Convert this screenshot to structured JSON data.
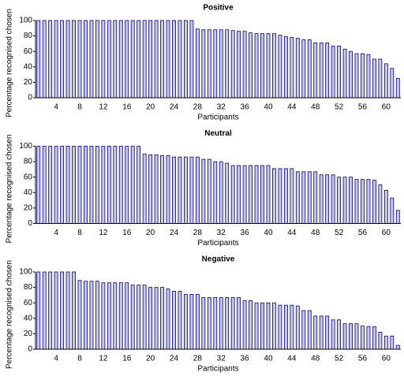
{
  "chart_data": [
    {
      "type": "bar",
      "title": "Positive",
      "xlabel": "Participants",
      "ylabel": "Percentage recognised chosen",
      "color": "#c8c8f0",
      "categories": [
        null,
        null,
        null,
        4,
        null,
        null,
        null,
        8,
        null,
        null,
        null,
        12,
        null,
        null,
        null,
        16,
        null,
        null,
        null,
        20,
        null,
        null,
        null,
        24,
        null,
        null,
        null,
        28,
        null,
        null,
        null,
        32,
        null,
        null,
        null,
        36,
        null,
        null,
        null,
        40,
        null,
        null,
        null,
        44,
        null,
        null,
        null,
        48,
        null,
        null,
        null,
        52,
        null,
        null,
        null,
        56,
        null,
        null,
        null,
        60,
        null,
        null
      ],
      "values": [
        100,
        100,
        100,
        100,
        100,
        100,
        100,
        100,
        100,
        100,
        100,
        100,
        100,
        100,
        100,
        100,
        100,
        100,
        100,
        100,
        100,
        100,
        100,
        100,
        100,
        100,
        100,
        89,
        88,
        88,
        88,
        88,
        88,
        87,
        86,
        86,
        84,
        83,
        83,
        83,
        83,
        81,
        79,
        78,
        77,
        75,
        75,
        71,
        71,
        71,
        67,
        67,
        63,
        60,
        57,
        57,
        56,
        50,
        50,
        44,
        38,
        25
      ],
      "ylim": [
        0,
        100
      ],
      "yticks": [
        0,
        20,
        40,
        60,
        80,
        100
      ]
    },
    {
      "type": "bar",
      "title": "Neutral",
      "xlabel": "Participants",
      "ylabel": "Percentage recognised chosen",
      "color": "#c8c8f0",
      "categories": [
        null,
        null,
        null,
        4,
        null,
        null,
        null,
        8,
        null,
        null,
        null,
        12,
        null,
        null,
        null,
        16,
        null,
        null,
        null,
        20,
        null,
        null,
        null,
        24,
        null,
        null,
        null,
        28,
        null,
        null,
        null,
        32,
        null,
        null,
        null,
        36,
        null,
        null,
        null,
        40,
        null,
        null,
        null,
        44,
        null,
        null,
        null,
        48,
        null,
        null,
        null,
        52,
        null,
        null,
        null,
        56,
        null,
        null,
        null,
        60,
        null,
        null
      ],
      "values": [
        100,
        100,
        100,
        100,
        100,
        100,
        100,
        100,
        100,
        100,
        100,
        100,
        100,
        100,
        100,
        100,
        100,
        100,
        90,
        89,
        89,
        88,
        88,
        86,
        86,
        86,
        86,
        86,
        83,
        83,
        80,
        80,
        78,
        75,
        75,
        75,
        75,
        75,
        75,
        75,
        71,
        71,
        71,
        71,
        67,
        67,
        67,
        67,
        63,
        63,
        63,
        60,
        60,
        60,
        57,
        57,
        57,
        56,
        50,
        43,
        33,
        17
      ],
      "ylim": [
        0,
        100
      ],
      "yticks": [
        0,
        20,
        40,
        60,
        80,
        100
      ]
    },
    {
      "type": "bar",
      "title": "Negative",
      "xlabel": "Participants",
      "ylabel": "Percentage recognised chosen",
      "color": "#c8c8f0",
      "categories": [
        null,
        null,
        null,
        4,
        null,
        null,
        null,
        8,
        null,
        null,
        null,
        12,
        null,
        null,
        null,
        16,
        null,
        null,
        null,
        20,
        null,
        null,
        null,
        24,
        null,
        null,
        null,
        28,
        null,
        null,
        null,
        32,
        null,
        null,
        null,
        36,
        null,
        null,
        null,
        40,
        null,
        null,
        null,
        44,
        null,
        null,
        null,
        48,
        null,
        null,
        null,
        52,
        null,
        null,
        null,
        56,
        null,
        null,
        null,
        60,
        null,
        null
      ],
      "values": [
        100,
        100,
        100,
        100,
        100,
        100,
        100,
        89,
        88,
        88,
        88,
        86,
        86,
        86,
        86,
        86,
        83,
        83,
        83,
        80,
        80,
        80,
        78,
        75,
        75,
        71,
        71,
        71,
        67,
        67,
        67,
        67,
        67,
        67,
        67,
        63,
        63,
        60,
        60,
        60,
        60,
        57,
        57,
        57,
        56,
        50,
        50,
        43,
        43,
        43,
        38,
        38,
        33,
        33,
        33,
        30,
        29,
        29,
        22,
        17,
        17,
        5
      ],
      "ylim": [
        0,
        100
      ],
      "yticks": [
        0,
        20,
        40,
        60,
        80,
        100
      ]
    }
  ]
}
